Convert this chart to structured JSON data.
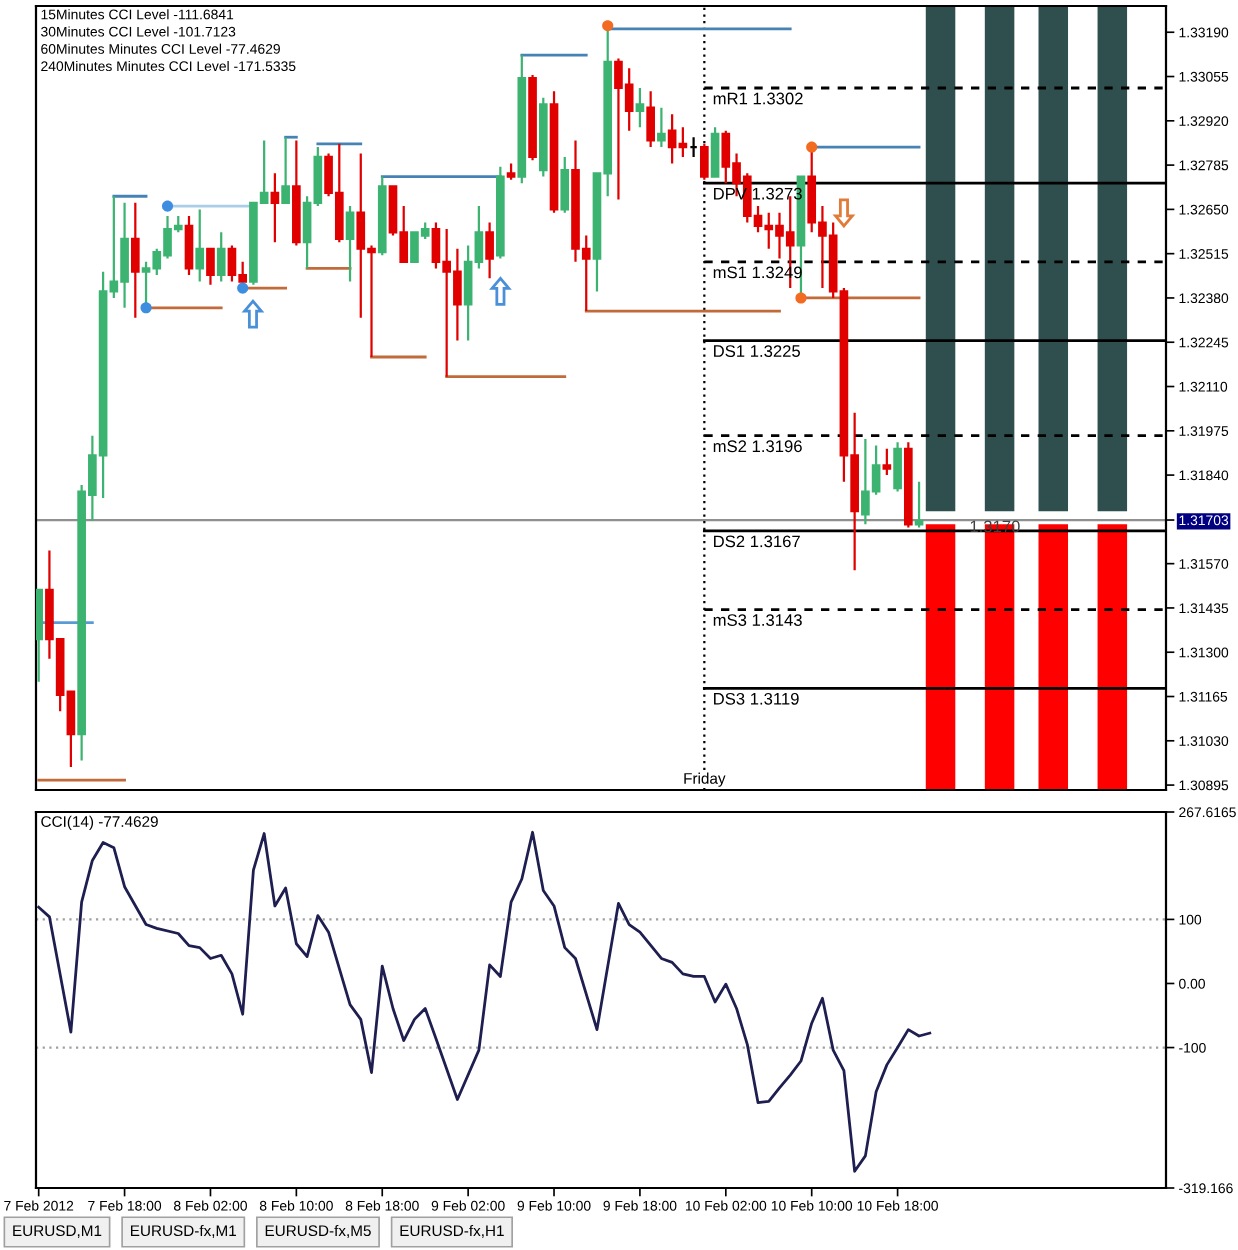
{
  "chart_data": [
    {
      "type": "candlestick",
      "x": [
        "2012-02-07T10:00",
        "2012-02-07T11:00",
        "2012-02-07T12:00",
        "2012-02-07T13:00",
        "2012-02-07T14:00",
        "2012-02-07T15:00",
        "2012-02-07T16:00",
        "2012-02-07T17:00",
        "2012-02-07T18:00",
        "2012-02-07T19:00",
        "2012-02-07T20:00",
        "2012-02-07T21:00",
        "2012-02-07T22:00",
        "2012-02-07T23:00",
        "2012-02-08T00:00",
        "2012-02-08T01:00",
        "2012-02-08T02:00",
        "2012-02-08T03:00",
        "2012-02-08T04:00",
        "2012-02-08T05:00",
        "2012-02-08T06:00",
        "2012-02-08T07:00",
        "2012-02-08T08:00",
        "2012-02-08T09:00",
        "2012-02-08T10:00",
        "2012-02-08T11:00",
        "2012-02-08T12:00",
        "2012-02-08T13:00",
        "2012-02-08T14:00",
        "2012-02-08T15:00",
        "2012-02-08T16:00",
        "2012-02-08T17:00",
        "2012-02-08T18:00",
        "2012-02-08T19:00",
        "2012-02-08T20:00",
        "2012-02-08T21:00",
        "2012-02-08T22:00",
        "2012-02-08T23:00",
        "2012-02-09T00:00",
        "2012-02-09T01:00",
        "2012-02-09T02:00",
        "2012-02-09T03:00",
        "2012-02-09T04:00",
        "2012-02-09T05:00",
        "2012-02-09T06:00",
        "2012-02-09T07:00",
        "2012-02-09T08:00",
        "2012-02-09T09:00",
        "2012-02-09T10:00",
        "2012-02-09T11:00",
        "2012-02-09T12:00",
        "2012-02-09T13:00",
        "2012-02-09T14:00",
        "2012-02-09T15:00",
        "2012-02-09T16:00",
        "2012-02-09T17:00",
        "2012-02-09T18:00",
        "2012-02-09T19:00",
        "2012-02-09T20:00",
        "2012-02-09T21:00",
        "2012-02-09T22:00",
        "2012-02-09T23:00",
        "2012-02-10T00:00",
        "2012-02-10T01:00",
        "2012-02-10T02:00",
        "2012-02-10T03:00",
        "2012-02-10T04:00",
        "2012-02-10T05:00",
        "2012-02-10T06:00",
        "2012-02-10T07:00",
        "2012-02-10T08:00",
        "2012-02-10T09:00",
        "2012-02-10T10:00",
        "2012-02-10T11:00",
        "2012-02-10T12:00",
        "2012-02-10T13:00",
        "2012-02-10T14:00",
        "2012-02-10T15:00",
        "2012-02-10T16:00",
        "2012-02-10T17:00",
        "2012-02-10T18:00",
        "2012-02-10T19:00",
        "2012-02-10T20:00"
      ],
      "ohlc": [
        [
          1.3134,
          1.3149,
          1.3121,
          1.3149
        ],
        [
          1.3149,
          1.3161,
          1.3128,
          1.3134
        ],
        [
          1.3134,
          1.3134,
          1.3112,
          1.3117
        ],
        [
          1.3118,
          1.3118,
          1.3095,
          1.3105
        ],
        [
          1.3105,
          1.3181,
          1.3097,
          1.3179
        ],
        [
          1.3178,
          1.3196,
          1.317,
          1.319
        ],
        [
          1.319,
          1.3246,
          1.3177,
          1.324
        ],
        [
          1.324,
          1.3269,
          1.3238,
          1.3243
        ],
        [
          1.3243,
          1.3267,
          1.3235,
          1.3256
        ],
        [
          1.3256,
          1.3267,
          1.3232,
          1.3246
        ],
        [
          1.3246,
          1.3249,
          1.3235,
          1.3247
        ],
        [
          1.3247,
          1.3253,
          1.3245,
          1.3252
        ],
        [
          1.3251,
          1.3263,
          1.325,
          1.3259
        ],
        [
          1.3259,
          1.3263,
          1.3258,
          1.326
        ],
        [
          1.326,
          1.3263,
          1.3245,
          1.3247
        ],
        [
          1.3247,
          1.3265,
          1.3243,
          1.3253
        ],
        [
          1.3253,
          1.3253,
          1.3242,
          1.3245
        ],
        [
          1.3245,
          1.3258,
          1.3243,
          1.3253
        ],
        [
          1.3253,
          1.3254,
          1.3243,
          1.3245
        ],
        [
          1.3245,
          1.3249,
          1.3241,
          1.3243
        ],
        [
          1.3243,
          1.3267,
          1.3242,
          1.3267
        ],
        [
          1.3267,
          1.3286,
          1.3267,
          1.327
        ],
        [
          1.327,
          1.3276,
          1.3255,
          1.3267
        ],
        [
          1.3267,
          1.3287,
          1.3267,
          1.3272
        ],
        [
          1.3272,
          1.3286,
          1.3254,
          1.3255
        ],
        [
          1.3255,
          1.3269,
          1.3247,
          1.3267
        ],
        [
          1.3267,
          1.3284,
          1.3266,
          1.3281
        ],
        [
          1.3281,
          1.3282,
          1.3269,
          1.327
        ],
        [
          1.327,
          1.3285,
          1.3255,
          1.3256
        ],
        [
          1.3256,
          1.3266,
          1.3243,
          1.3264
        ],
        [
          1.3264,
          1.3282,
          1.3232,
          1.3253
        ],
        [
          1.3253,
          1.3254,
          1.322,
          1.3252
        ],
        [
          1.3252,
          1.3275,
          1.3251,
          1.3272
        ],
        [
          1.3272,
          1.3272,
          1.3257,
          1.3258
        ],
        [
          1.3258,
          1.3266,
          1.3249,
          1.3249
        ],
        [
          1.3249,
          1.3258,
          1.3249,
          1.3258
        ],
        [
          1.3257,
          1.3261,
          1.3256,
          1.3259
        ],
        [
          1.3259,
          1.3261,
          1.3247,
          1.3249
        ],
        [
          1.3249,
          1.3259,
          1.3214,
          1.3246
        ],
        [
          1.3246,
          1.3253,
          1.3225,
          1.3236
        ],
        [
          1.3236,
          1.3254,
          1.3225,
          1.3249
        ],
        [
          1.3249,
          1.3266,
          1.3247,
          1.3258
        ],
        [
          1.3258,
          1.3261,
          1.3244,
          1.325
        ],
        [
          1.3251,
          1.3278,
          1.325,
          1.3275
        ],
        [
          1.3276,
          1.3279,
          1.3274,
          1.3275
        ],
        [
          1.3275,
          1.3312,
          1.3273,
          1.3305
        ],
        [
          1.3305,
          1.3306,
          1.328,
          1.3281
        ],
        [
          1.3277,
          1.3299,
          1.3275,
          1.3297
        ],
        [
          1.3297,
          1.3301,
          1.3264,
          1.3265
        ],
        [
          1.3265,
          1.3281,
          1.3264,
          1.3277
        ],
        [
          1.3277,
          1.3286,
          1.3249,
          1.3253
        ],
        [
          1.3253,
          1.3257,
          1.3234,
          1.325
        ],
        [
          1.325,
          1.3276,
          1.324,
          1.3276
        ],
        [
          1.3276,
          1.3321,
          1.3269,
          1.331
        ],
        [
          1.331,
          1.3311,
          1.3268,
          1.3302
        ],
        [
          1.3303,
          1.3308,
          1.3289,
          1.3295
        ],
        [
          1.3295,
          1.3302,
          1.329,
          1.3297
        ],
        [
          1.3296,
          1.3301,
          1.3284,
          1.3286
        ],
        [
          1.3286,
          1.3296,
          1.3284,
          1.3288
        ],
        [
          1.3289,
          1.3294,
          1.3279,
          1.3284
        ],
        [
          1.3285,
          1.329,
          1.3281,
          1.3284
        ],
        [
          1.3284,
          1.3287,
          1.3281,
          1.3284
        ],
        [
          1.3284,
          1.3285,
          1.3274,
          1.3275
        ],
        [
          1.3275,
          1.329,
          1.3275,
          1.3288
        ],
        [
          1.3288,
          1.3289,
          1.3273,
          1.3278
        ],
        [
          1.3279,
          1.3282,
          1.3269,
          1.3273
        ],
        [
          1.3275,
          1.3276,
          1.3261,
          1.3263
        ],
        [
          1.3263,
          1.3266,
          1.3258,
          1.326
        ],
        [
          1.326,
          1.3264,
          1.3253,
          1.3259
        ],
        [
          1.326,
          1.3264,
          1.325,
          1.3257
        ],
        [
          1.3258,
          1.3269,
          1.3241,
          1.3254
        ],
        [
          1.3254,
          1.3275,
          1.3238,
          1.3275
        ],
        [
          1.3275,
          1.3284,
          1.3258,
          1.3261
        ],
        [
          1.3261,
          1.3266,
          1.3241,
          1.3257
        ],
        [
          1.3257,
          1.3261,
          1.3238,
          1.324
        ],
        [
          1.324,
          1.3241,
          1.3182,
          1.319
        ],
        [
          1.319,
          1.3203,
          1.3155,
          1.3173
        ],
        [
          1.3172,
          1.3195,
          1.3169,
          1.3179
        ],
        [
          1.3179,
          1.3193,
          1.3178,
          1.3187
        ],
        [
          1.3187,
          1.3192,
          1.3184,
          1.3186
        ],
        [
          1.318,
          1.3194,
          1.3179,
          1.3192
        ],
        [
          1.3192,
          1.3194,
          1.3168,
          1.3169
        ],
        [
          1.3169,
          1.3182,
          1.3168,
          1.317
        ]
      ],
      "colors": [
        "#3cb371",
        "#e00000",
        "#e00000",
        "#e00000",
        "#3cb371",
        "#3cb371",
        "#3cb371",
        "#3cb371",
        "#3cb371",
        "#e00000",
        "#3cb371",
        "#3cb371",
        "#3cb371",
        "#3cb371",
        "#e00000",
        "#3cb371",
        "#e00000",
        "#3cb371",
        "#e00000",
        "#e00000",
        "#3cb371",
        "#3cb371",
        "#e00000",
        "#3cb371",
        "#e00000",
        "#3cb371",
        "#3cb371",
        "#e00000",
        "#e00000",
        "#3cb371",
        "#e00000",
        "#e00000",
        "#3cb371",
        "#e00000",
        "#e00000",
        "#3cb371",
        "#3cb371",
        "#e00000",
        "#e00000",
        "#e00000",
        "#3cb371",
        "#3cb371",
        "#e00000",
        "#3cb371",
        "#e00000",
        "#3cb371",
        "#e00000",
        "#3cb371",
        "#e00000",
        "#3cb371",
        "#e00000",
        "#e00000",
        "#3cb371",
        "#3cb371",
        "#e00000",
        "#e00000",
        "#3cb371",
        "#e00000",
        "#3cb371",
        "#e00000",
        "#e00000",
        "#000000",
        "#e00000",
        "#3cb371",
        "#e00000",
        "#e00000",
        "#e00000",
        "#e00000",
        "#e00000",
        "#e00000",
        "#e00000",
        "#3cb371",
        "#e00000",
        "#e00000",
        "#e00000",
        "#e00000",
        "#e00000",
        "#3cb371",
        "#3cb371",
        "#e00000",
        "#3cb371",
        "#e00000",
        "#3cb371"
      ],
      "series": [
        {
          "type": "bar",
          "x": [
            "2012-02-10T22:00",
            "2012-02-11T03:30",
            "2012-02-11T08:30",
            "2012-02-11T14:00"
          ],
          "base": [
            1.3173,
            1.3173,
            1.3173,
            1.3173
          ],
          "values": [
            0.0154,
            0.0154,
            0.0154,
            0.0154
          ],
          "color": "#2f4f4f"
        },
        {
          "type": "bar",
          "x": [
            "2012-02-10T22:00",
            "2012-02-11T03:30",
            "2012-02-11T08:30",
            "2012-02-11T14:00"
          ],
          "base": [
            1.3088,
            1.3088,
            1.3088,
            1.3088
          ],
          "values": [
            0.0081,
            0.0081,
            0.0081,
            0.0081
          ],
          "color": "#ff0000"
        },
        {
          "type": "line",
          "name": "mR1 1.3302",
          "x": [
            "2012-02-10T00:00",
            "2012-02-11T19:00"
          ],
          "values": [
            1.3302,
            1.3302
          ],
          "color": "#000000",
          "line_style": "dashed"
        },
        {
          "type": "line",
          "name": "DPV 1.3273",
          "x": [
            "2012-02-10T00:00",
            "2012-02-11T19:00"
          ],
          "values": [
            1.3273,
            1.3273
          ],
          "color": "#000000",
          "line_style": "solid"
        },
        {
          "type": "line",
          "name": "mS1 1.3249",
          "x": [
            "2012-02-10T00:00",
            "2012-02-11T19:00"
          ],
          "values": [
            1.3249,
            1.3249
          ],
          "color": "#000000",
          "line_style": "dashed"
        },
        {
          "type": "line",
          "name": "DS1 1.3225",
          "x": [
            "2012-02-10T00:00",
            "2012-02-11T19:00"
          ],
          "values": [
            1.3225,
            1.3225
          ],
          "color": "#000000",
          "line_style": "solid"
        },
        {
          "type": "line",
          "name": "mS2 1.3196",
          "x": [
            "2012-02-10T00:00",
            "2012-02-11T19:00"
          ],
          "values": [
            1.3196,
            1.3196
          ],
          "color": "#000000",
          "line_style": "dashed"
        },
        {
          "type": "line",
          "name": "DS2 1.3167",
          "x": [
            "2012-02-10T00:00",
            "2012-02-11T19:00"
          ],
          "values": [
            1.3167,
            1.3167
          ],
          "color": "#000000",
          "line_style": "solid"
        },
        {
          "type": "line",
          "name": "mS3 1.3143",
          "x": [
            "2012-02-10T00:00",
            "2012-02-11T19:00"
          ],
          "values": [
            1.3143,
            1.3143
          ],
          "color": "#000000",
          "line_style": "dashed"
        },
        {
          "type": "line",
          "name": "DS3 1.3119",
          "x": [
            "2012-02-10T00:00",
            "2012-02-11T19:00"
          ],
          "values": [
            1.3119,
            1.3119
          ],
          "color": "#000000",
          "line_style": "solid"
        },
        {
          "type": "line",
          "x": [
            "2012-02-07T10:00",
            "2012-02-07T15:00"
          ],
          "values": [
            1.3139,
            1.3139
          ],
          "color": "#5b9bd5"
        },
        {
          "type": "line",
          "x": [
            "2012-02-07T10:00",
            "2012-02-07T18:00"
          ],
          "values": [
            1.3091,
            1.3091
          ],
          "color": "#c26b3a"
        },
        {
          "type": "line",
          "x": [
            "2012-02-07T17:00",
            "2012-02-07T20:00"
          ],
          "values": [
            1.3269,
            1.3269
          ],
          "color": "#4682b4"
        },
        {
          "type": "line",
          "x": [
            "2012-02-07T22:00",
            "2012-02-08T06:00"
          ],
          "values": [
            1.3266,
            1.3266
          ],
          "color": "#a9cfe8"
        },
        {
          "type": "line",
          "x": [
            "2012-02-07T20:00",
            "2012-02-08T03:00"
          ],
          "values": [
            1.3235,
            1.3235
          ],
          "color": "#c26b3a"
        },
        {
          "type": "line",
          "x": [
            "2012-02-08T05:00",
            "2012-02-08T09:00"
          ],
          "values": [
            1.3241,
            1.3241
          ],
          "color": "#c26b3a"
        },
        {
          "type": "line",
          "x": [
            "2012-02-08T09:00",
            "2012-02-08T10:00"
          ],
          "values": [
            1.3287,
            1.3287
          ],
          "color": "#4682b4"
        },
        {
          "type": "line",
          "x": [
            "2012-02-08T11:00",
            "2012-02-08T15:00"
          ],
          "values": [
            1.3247,
            1.3247
          ],
          "color": "#c26b3a"
        },
        {
          "type": "line",
          "x": [
            "2012-02-08T12:00",
            "2012-02-08T16:00"
          ],
          "values": [
            1.3285,
            1.3285
          ],
          "color": "#4682b4"
        },
        {
          "type": "line",
          "x": [
            "2012-02-08T17:00",
            "2012-02-08T22:00"
          ],
          "values": [
            1.322,
            1.322
          ],
          "color": "#c26b3a"
        },
        {
          "type": "line",
          "x": [
            "2012-02-08T18:00",
            "2012-02-09T05:00"
          ],
          "values": [
            1.3275,
            1.3275
          ],
          "color": "#4682b4"
        },
        {
          "type": "line",
          "x": [
            "2012-02-09T00:00",
            "2012-02-09T11:00"
          ],
          "values": [
            1.3214,
            1.3214
          ],
          "color": "#c26b3a"
        },
        {
          "type": "line",
          "x": [
            "2012-02-09T07:00",
            "2012-02-09T13:00"
          ],
          "values": [
            1.3312,
            1.3312
          ],
          "color": "#4682b4"
        },
        {
          "type": "line",
          "x": [
            "2012-02-09T13:00",
            "2012-02-10T07:00"
          ],
          "values": [
            1.3234,
            1.3234
          ],
          "color": "#c26b3a"
        },
        {
          "type": "line",
          "x": [
            "2012-02-09T15:00",
            "2012-02-10T08:00"
          ],
          "values": [
            1.332,
            1.332
          ],
          "color": "#4682b4"
        },
        {
          "type": "line",
          "x": [
            "2012-02-10T09:00",
            "2012-02-10T20:00"
          ],
          "values": [
            1.3238,
            1.3238
          ],
          "color": "#c26b3a"
        },
        {
          "type": "line",
          "x": [
            "2012-02-10T10:00",
            "2012-02-10T20:00"
          ],
          "values": [
            1.3284,
            1.3284
          ],
          "color": "#4682b4"
        },
        {
          "type": "scatter",
          "x": [
            "2012-02-07T20:00",
            "2012-02-07T22:00",
            "2012-02-08T05:00"
          ],
          "values": [
            1.3235,
            1.3266,
            1.3241
          ],
          "color": "#3d8de0",
          "marker": "circle"
        },
        {
          "type": "scatter",
          "x": [
            "2012-02-09T15:00",
            "2012-02-10T09:00",
            "2012-02-10T10:00"
          ],
          "values": [
            1.3321,
            1.3238,
            1.3284
          ],
          "color": "#f26b21",
          "marker": "circle"
        }
      ],
      "xlim": [
        "2012-02-07T09:45",
        "2012-02-11T19:00"
      ],
      "ylim": [
        1.3088,
        1.3327
      ],
      "yticks": [
        {
          "value": 1.3319,
          "label": "1.33190"
        },
        {
          "value": 1.33055,
          "label": "1.33055"
        },
        {
          "value": 1.3292,
          "label": "1.32920"
        },
        {
          "value": 1.32785,
          "label": "1.32785"
        },
        {
          "value": 1.3265,
          "label": "1.32650"
        },
        {
          "value": 1.32515,
          "label": "1.32515"
        },
        {
          "value": 1.3238,
          "label": "1.32380"
        },
        {
          "value": 1.32245,
          "label": "1.32245"
        },
        {
          "value": 1.3211,
          "label": "1.32110"
        },
        {
          "value": 1.31975,
          "label": "1.31975"
        },
        {
          "value": 1.3184,
          "label": "1.31840"
        },
        {
          "value": 1.31703,
          "label": "1.31703"
        },
        {
          "value": 1.3157,
          "label": "1.31570"
        },
        {
          "value": 1.31435,
          "label": "1.31435"
        },
        {
          "value": 1.313,
          "label": "1.31300"
        },
        {
          "value": 1.31165,
          "label": "1.31165"
        },
        {
          "value": 1.3103,
          "label": "1.31030"
        },
        {
          "value": 1.30895,
          "label": "1.30895"
        }
      ],
      "tick_labels": "y",
      "ref_lines": [
        {
          "axis": "y",
          "value": 1.31703,
          "label": "1.3170",
          "color": "#909090",
          "line_style": "solid"
        },
        {
          "axis": "x",
          "value": "2012-02-10T00:00",
          "label": "Friday",
          "color": "#000000",
          "line_style": "dotted"
        }
      ],
      "annotations": [
        "15Minutes CCI Level -111.6841",
        "30Minutes CCI Level -101.7123",
        "60Minutes Minutes CCI Level -77.4629",
        "240Minutes Minutes CCI Level -171.5335"
      ]
    },
    {
      "type": "line",
      "title": "CCI(14) -77.4629",
      "x": [
        "2012-02-07T10:00",
        "2012-02-07T11:00",
        "2012-02-07T13:00",
        "2012-02-07T14:00",
        "2012-02-07T15:00",
        "2012-02-07T16:00",
        "2012-02-07T17:00",
        "2012-02-07T18:00",
        "2012-02-07T20:00",
        "2012-02-07T21:00",
        "2012-02-07T23:00",
        "2012-02-08T00:00",
        "2012-02-08T01:00",
        "2012-02-08T02:00",
        "2012-02-08T03:00",
        "2012-02-08T04:00",
        "2012-02-08T05:00",
        "2012-02-08T06:00",
        "2012-02-08T07:00",
        "2012-02-08T08:00",
        "2012-02-08T09:00",
        "2012-02-08T10:00",
        "2012-02-08T11:00",
        "2012-02-08T12:00",
        "2012-02-08T13:00",
        "2012-02-08T15:00",
        "2012-02-08T16:00",
        "2012-02-08T17:00",
        "2012-02-08T18:00",
        "2012-02-08T19:00",
        "2012-02-08T20:00",
        "2012-02-08T21:00",
        "2012-02-08T22:00",
        "2012-02-08T23:00",
        "2012-02-09T01:00",
        "2012-02-09T03:00",
        "2012-02-09T04:00",
        "2012-02-09T05:00",
        "2012-02-09T06:00",
        "2012-02-09T07:00",
        "2012-02-09T08:00",
        "2012-02-09T09:00",
        "2012-02-09T10:00",
        "2012-02-09T11:00",
        "2012-02-09T12:00",
        "2012-02-09T14:00",
        "2012-02-09T16:00",
        "2012-02-09T17:00",
        "2012-02-09T18:00",
        "2012-02-09T20:00",
        "2012-02-09T21:00",
        "2012-02-09T22:00",
        "2012-02-09T23:00",
        "2012-02-10T00:00",
        "2012-02-10T01:00",
        "2012-02-10T02:00",
        "2012-02-10T03:00",
        "2012-02-10T04:00",
        "2012-02-10T05:00",
        "2012-02-10T06:00",
        "2012-02-10T07:00",
        "2012-02-10T08:00",
        "2012-02-10T09:00",
        "2012-02-10T10:00",
        "2012-02-10T11:00",
        "2012-02-10T12:00",
        "2012-02-10T13:00",
        "2012-02-10T14:00",
        "2012-02-10T15:00",
        "2012-02-10T16:00",
        "2012-02-10T17:00",
        "2012-02-10T18:00",
        "2012-02-10T19:00",
        "2012-02-10T20:00",
        "2012-02-10T21:00"
      ],
      "series": [
        {
          "color": "#1e1e50",
          "values": [
            119,
            104,
            -76,
            127,
            192,
            220,
            212,
            151,
            92,
            86,
            78,
            59,
            56,
            39,
            44,
            15,
            -48,
            177,
            234,
            121,
            149,
            62,
            42,
            106,
            80,
            -33,
            -56,
            -139,
            27,
            -39,
            -89,
            -56,
            -39,
            -86,
            -181,
            -104,
            29,
            11,
            127,
            163,
            236,
            145,
            121,
            56,
            39,
            -72,
            125,
            92,
            80,
            39,
            33,
            15,
            11,
            11,
            -29,
            -1,
            -39,
            -95,
            -186,
            -184,
            -163,
            -143,
            -121,
            -62,
            -23,
            -104,
            -136,
            -293,
            -269,
            -169,
            -127,
            -100,
            -72,
            -82,
            -77.4629
          ]
        }
      ],
      "xlim": [
        "2012-02-07T09:45",
        "2012-02-11T19:00"
      ],
      "xticks": [
        {
          "value": "2012-02-07T10:00",
          "label": "7 Feb 2012"
        },
        {
          "value": "2012-02-07T18:00",
          "label": "7 Feb 18:00"
        },
        {
          "value": "2012-02-08T02:00",
          "label": "8 Feb 02:00"
        },
        {
          "value": "2012-02-08T10:00",
          "label": "8 Feb 10:00"
        },
        {
          "value": "2012-02-08T18:00",
          "label": "8 Feb 18:00"
        },
        {
          "value": "2012-02-09T02:00",
          "label": "9 Feb 02:00"
        },
        {
          "value": "2012-02-09T10:00",
          "label": "9 Feb 10:00"
        },
        {
          "value": "2012-02-09T18:00",
          "label": "9 Feb 18:00"
        },
        {
          "value": "2012-02-10T02:00",
          "label": "10 Feb 02:00"
        },
        {
          "value": "2012-02-10T10:00",
          "label": "10 Feb 10:00"
        },
        {
          "value": "2012-02-10T18:00",
          "label": "10 Feb 18:00"
        }
      ],
      "ylim": [
        -319.166,
        267.6165
      ],
      "yticks": [
        {
          "value": 267.6165,
          "label": "267.6165"
        },
        100,
        {
          "value": 0,
          "label": "0.00"
        },
        -100,
        -319.166
      ],
      "ref_lines": [
        {
          "axis": "y",
          "value": 100,
          "color": "#a0a0a0",
          "line_style": "dotted"
        },
        {
          "axis": "y",
          "value": -100,
          "color": "#a0a0a0",
          "line_style": "dotted"
        }
      ],
      "annotations": [
        "EURUSD,M1",
        "EURUSD-fx,M1",
        "EURUSD-fx,M5",
        "EURUSD-fx,H1"
      ]
    }
  ]
}
